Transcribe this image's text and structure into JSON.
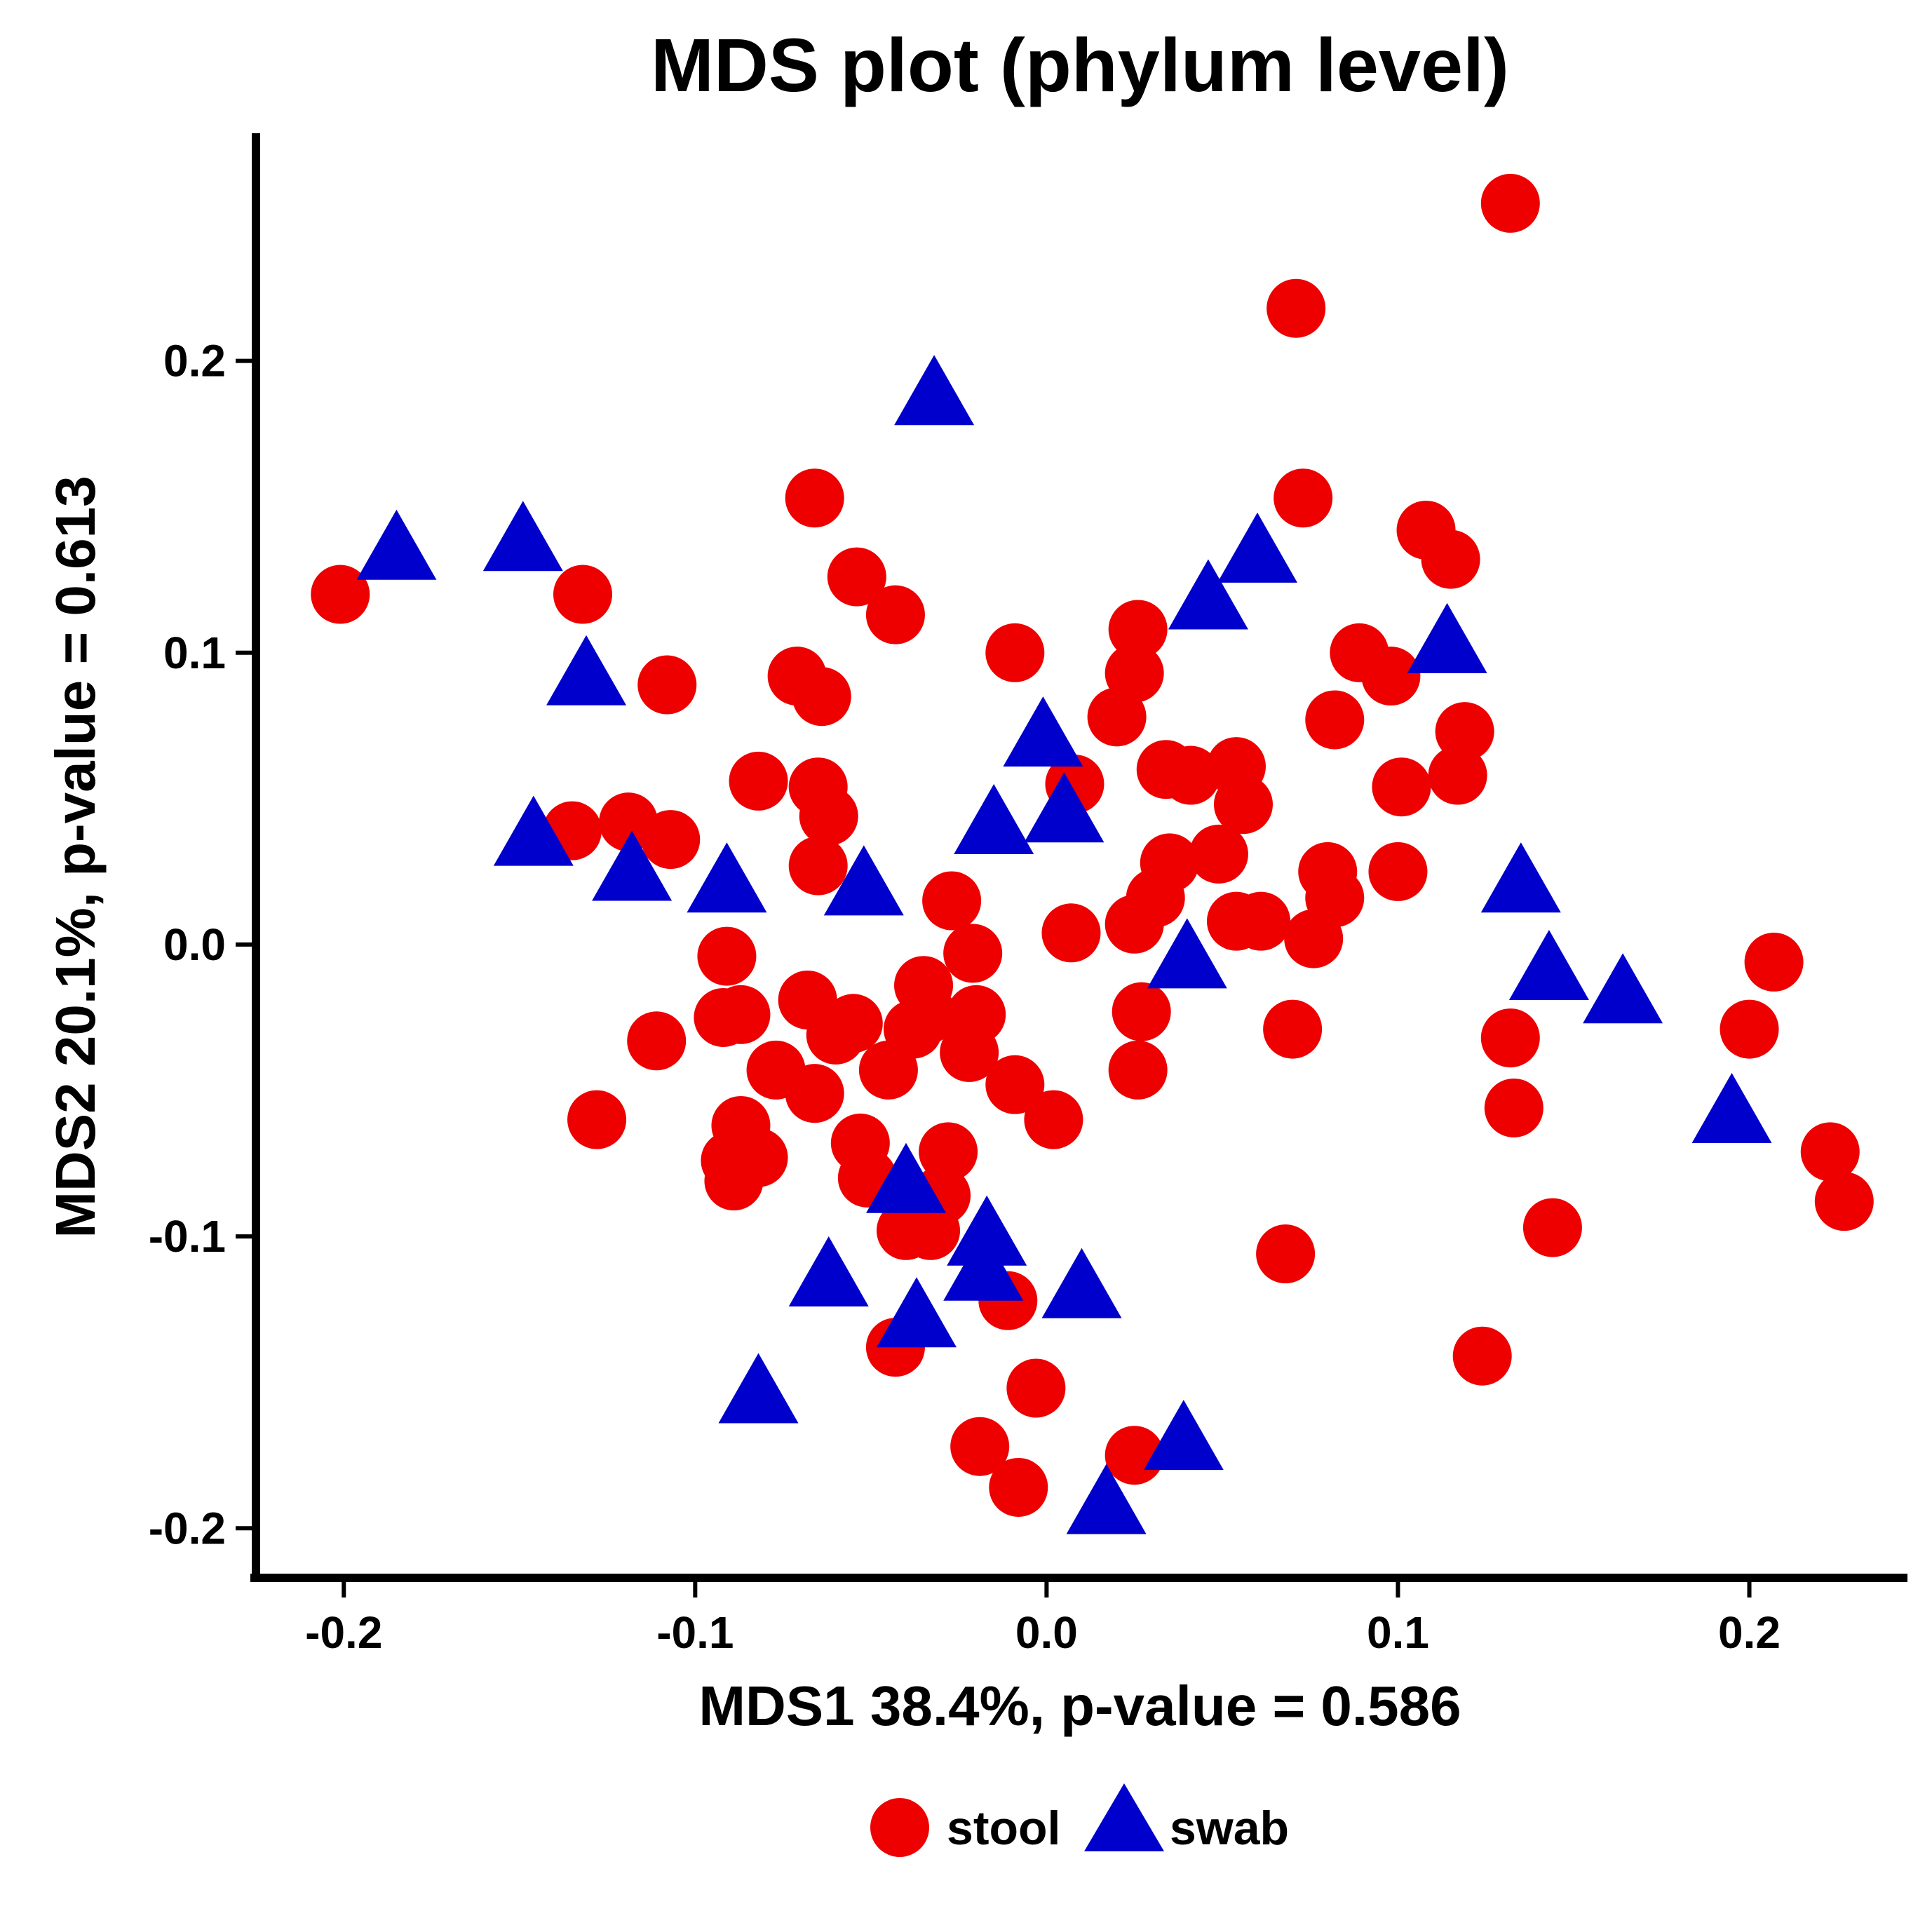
{
  "chart_data": {
    "type": "scatter",
    "title": "MDS plot (phylum level)",
    "xlabel": "MDS1 38.4%, p-value = 0.586",
    "ylabel": "MDS2 20.1%, p-value = 0.613",
    "xlim": [
      -0.225,
      0.245
    ],
    "ylim": [
      -0.217,
      0.278
    ],
    "x_ticks": [
      -0.2,
      -0.1,
      0.0,
      0.1,
      0.2
    ],
    "x_tick_labels": [
      "-0.2",
      "-0.1",
      "0.0",
      "0.1",
      "0.2"
    ],
    "y_ticks": [
      -0.2,
      -0.1,
      0.0,
      0.1,
      0.2
    ],
    "y_tick_labels": [
      "-0.2",
      "-0.1",
      "0.0",
      "0.1",
      "0.2"
    ],
    "grid": false,
    "legend_position": "bottom",
    "series": [
      {
        "name": "stool",
        "shape": "circle",
        "color": "#EE0000",
        "points": [
          [
            0.132,
            0.254
          ],
          [
            0.071,
            0.218
          ],
          [
            0.073,
            0.153
          ],
          [
            0.108,
            0.142
          ],
          [
            0.115,
            0.132
          ],
          [
            0.089,
            0.1
          ],
          [
            0.098,
            0.092
          ],
          [
            0.082,
            0.077
          ],
          [
            0.119,
            0.073
          ],
          [
            0.117,
            0.058
          ],
          [
            0.101,
            0.054
          ],
          [
            0.08,
            0.025
          ],
          [
            0.1,
            0.025
          ],
          [
            0.082,
            0.016
          ],
          [
            0.076,
            0.002
          ],
          [
            0.061,
            0.008
          ],
          [
            0.054,
            0.008
          ],
          [
            0.049,
            0.031
          ],
          [
            0.056,
            0.048
          ],
          [
            0.054,
            0.061
          ],
          [
            0.041,
            0.058
          ],
          [
            0.034,
            0.06
          ],
          [
            0.035,
            0.028
          ],
          [
            0.031,
            0.016
          ],
          [
            0.025,
            0.007
          ],
          [
            0.026,
            0.108
          ],
          [
            0.025,
            0.093
          ],
          [
            0.02,
            0.078
          ],
          [
            0.008,
            0.055
          ],
          [
            0.007,
            0.004
          ],
          [
            0.07,
            -0.029
          ],
          [
            0.027,
            -0.023
          ],
          [
            0.026,
            -0.043
          ],
          [
            0.068,
            -0.106
          ],
          [
            0.025,
            -0.175
          ],
          [
            -0.201,
            0.12
          ],
          [
            -0.132,
            0.12
          ],
          [
            -0.135,
            0.039
          ],
          [
            -0.119,
            0.042
          ],
          [
            -0.107,
            0.036
          ],
          [
            -0.108,
            0.089
          ],
          [
            -0.066,
            0.153
          ],
          [
            -0.054,
            0.126
          ],
          [
            -0.043,
            0.113
          ],
          [
            -0.071,
            0.092
          ],
          [
            -0.064,
            0.085
          ],
          [
            -0.082,
            0.056
          ],
          [
            -0.065,
            0.054
          ],
          [
            -0.062,
            0.044
          ],
          [
            -0.065,
            0.027
          ],
          [
            -0.009,
            0.1
          ],
          [
            -0.027,
            0.015
          ],
          [
            -0.021,
            -0.003
          ],
          [
            -0.091,
            -0.004
          ],
          [
            -0.068,
            -0.019
          ],
          [
            -0.055,
            -0.027
          ],
          [
            -0.06,
            -0.031
          ],
          [
            -0.035,
            -0.014
          ],
          [
            -0.034,
            -0.024
          ],
          [
            -0.038,
            -0.029
          ],
          [
            -0.02,
            -0.024
          ],
          [
            -0.022,
            -0.037
          ],
          [
            -0.092,
            -0.025
          ],
          [
            -0.087,
            -0.024
          ],
          [
            -0.111,
            -0.033
          ],
          [
            -0.077,
            -0.043
          ],
          [
            -0.066,
            -0.051
          ],
          [
            -0.045,
            -0.043
          ],
          [
            -0.009,
            -0.048
          ],
          [
            0.002,
            -0.06
          ],
          [
            -0.128,
            -0.06
          ],
          [
            -0.087,
            -0.062
          ],
          [
            -0.082,
            -0.073
          ],
          [
            -0.09,
            -0.074
          ],
          [
            -0.089,
            -0.081
          ],
          [
            -0.053,
            -0.068
          ],
          [
            -0.051,
            -0.08
          ],
          [
            -0.028,
            -0.071
          ],
          [
            -0.03,
            -0.086
          ],
          [
            -0.04,
            -0.098
          ],
          [
            -0.033,
            -0.098
          ],
          [
            -0.011,
            -0.122
          ],
          [
            -0.043,
            -0.138
          ],
          [
            -0.003,
            -0.152
          ],
          [
            -0.019,
            -0.172
          ],
          [
            -0.008,
            -0.186
          ],
          [
            0.132,
            -0.032
          ],
          [
            0.133,
            -0.056
          ],
          [
            0.144,
            -0.097
          ],
          [
            0.124,
            -0.141
          ],
          [
            0.2,
            -0.029
          ],
          [
            0.207,
            -0.006
          ],
          [
            0.223,
            -0.071
          ],
          [
            0.227,
            -0.088
          ]
        ]
      },
      {
        "name": "swab",
        "shape": "triangle",
        "color": "#0000CD",
        "points": [
          [
            -0.032,
            0.186
          ],
          [
            -0.185,
            0.133
          ],
          [
            -0.149,
            0.136
          ],
          [
            -0.131,
            0.09
          ],
          [
            -0.146,
            0.035
          ],
          [
            -0.118,
            0.023
          ],
          [
            -0.091,
            0.019
          ],
          [
            -0.052,
            0.018
          ],
          [
            -0.015,
            0.039
          ],
          [
            0.005,
            0.043
          ],
          [
            -0.001,
            0.069
          ],
          [
            0.046,
            0.116
          ],
          [
            0.06,
            0.132
          ],
          [
            0.114,
            0.101
          ],
          [
            0.135,
            0.019
          ],
          [
            0.143,
            -0.011
          ],
          [
            0.164,
            -0.019
          ],
          [
            0.195,
            -0.06
          ],
          [
            0.04,
            -0.007
          ],
          [
            -0.04,
            -0.084
          ],
          [
            -0.017,
            -0.102
          ],
          [
            -0.018,
            -0.114
          ],
          [
            0.01,
            -0.12
          ],
          [
            -0.062,
            -0.116
          ],
          [
            -0.037,
            -0.13
          ],
          [
            -0.082,
            -0.156
          ],
          [
            0.039,
            -0.172
          ],
          [
            0.017,
            -0.194
          ]
        ]
      }
    ]
  }
}
